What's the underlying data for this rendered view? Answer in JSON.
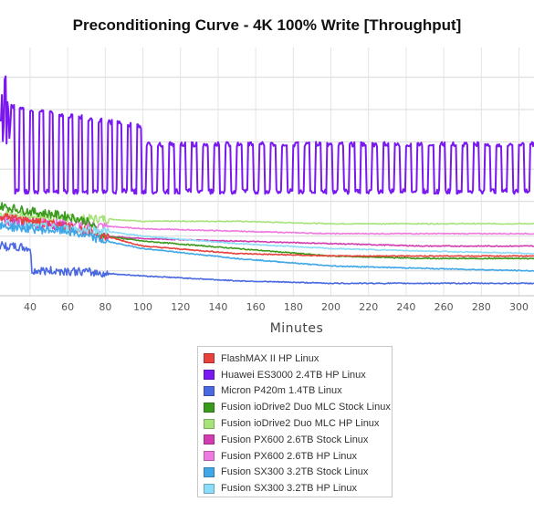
{
  "chart_data": {
    "type": "line",
    "title": "Preconditioning Curve - 4K 100% Write [Throughput]",
    "xlabel": "Minutes",
    "ylabel": "",
    "x_ticks": [
      40,
      60,
      80,
      100,
      120,
      140,
      160,
      180,
      200,
      220,
      240,
      260,
      280,
      300
    ],
    "xlim": [
      24,
      308
    ],
    "ylim": [
      0,
      1
    ],
    "y_scale_note": "relative",
    "grid": true,
    "legend_position": "bottom-center",
    "series": [
      {
        "name": "FlashMAX II HP Linux",
        "color": "#e8413c",
        "points": [
          [
            25,
            0.32
          ],
          [
            40,
            0.3
          ],
          [
            60,
            0.28
          ],
          [
            80,
            0.24
          ],
          [
            100,
            0.2
          ],
          [
            150,
            0.17
          ],
          [
            200,
            0.16
          ],
          [
            250,
            0.16
          ],
          [
            308,
            0.16
          ]
        ]
      },
      {
        "name": "Huawei ES3000 2.4TB HP Linux",
        "color": "#7a18f0",
        "points": [
          [
            25,
            0.7
          ],
          [
            28,
            0.95
          ],
          [
            30,
            0.62
          ],
          [
            45,
            0.58
          ],
          [
            60,
            0.56
          ],
          [
            80,
            0.54
          ],
          [
            120,
            0.5
          ],
          [
            160,
            0.5
          ],
          [
            200,
            0.5
          ],
          [
            240,
            0.5
          ],
          [
            280,
            0.5
          ],
          [
            308,
            0.5
          ]
        ]
      },
      {
        "name": "Micron P420m 1.4TB Linux",
        "color": "#4a68e0",
        "points": [
          [
            25,
            0.2
          ],
          [
            40,
            0.19
          ],
          [
            41,
            0.1
          ],
          [
            60,
            0.1
          ],
          [
            80,
            0.09
          ],
          [
            100,
            0.08
          ],
          [
            150,
            0.06
          ],
          [
            200,
            0.05
          ],
          [
            250,
            0.05
          ],
          [
            308,
            0.05
          ]
        ]
      },
      {
        "name": "Fusion ioDrive2 Duo MLC Stock Linux",
        "color": "#3a9a1c",
        "points": [
          [
            25,
            0.36
          ],
          [
            40,
            0.34
          ],
          [
            60,
            0.32
          ],
          [
            70,
            0.3
          ],
          [
            80,
            0.24
          ],
          [
            100,
            0.22
          ],
          [
            150,
            0.19
          ],
          [
            200,
            0.16
          ],
          [
            250,
            0.15
          ],
          [
            308,
            0.15
          ]
        ]
      },
      {
        "name": "Fusion ioDrive2 Duo MLC HP Linux",
        "color": "#a6e37a",
        "points": [
          [
            25,
            0.33
          ],
          [
            40,
            0.32
          ],
          [
            60,
            0.31
          ],
          [
            80,
            0.31
          ],
          [
            100,
            0.3
          ],
          [
            150,
            0.3
          ],
          [
            200,
            0.29
          ],
          [
            250,
            0.29
          ],
          [
            308,
            0.29
          ]
        ]
      },
      {
        "name": "Fusion PX600 2.6TB Stock Linux",
        "color": "#d23cb0",
        "points": [
          [
            25,
            0.3
          ],
          [
            40,
            0.29
          ],
          [
            60,
            0.28
          ],
          [
            80,
            0.24
          ],
          [
            100,
            0.23
          ],
          [
            150,
            0.22
          ],
          [
            200,
            0.21
          ],
          [
            250,
            0.2
          ],
          [
            308,
            0.2
          ]
        ]
      },
      {
        "name": "Fusion PX600 2.6TB HP Linux",
        "color": "#ee7ae0",
        "points": [
          [
            25,
            0.31
          ],
          [
            40,
            0.3
          ],
          [
            60,
            0.29
          ],
          [
            80,
            0.28
          ],
          [
            100,
            0.27
          ],
          [
            150,
            0.26
          ],
          [
            200,
            0.25
          ],
          [
            250,
            0.25
          ],
          [
            308,
            0.25
          ]
        ]
      },
      {
        "name": "Fusion SX300 3.2TB Stock Linux",
        "color": "#3fa7e8",
        "points": [
          [
            25,
            0.28
          ],
          [
            40,
            0.27
          ],
          [
            60,
            0.26
          ],
          [
            80,
            0.22
          ],
          [
            100,
            0.19
          ],
          [
            150,
            0.15
          ],
          [
            200,
            0.12
          ],
          [
            250,
            0.11
          ],
          [
            308,
            0.1
          ]
        ]
      },
      {
        "name": "Fusion SX300 3.2TB HP Linux",
        "color": "#8adcf8",
        "points": [
          [
            25,
            0.29
          ],
          [
            40,
            0.28
          ],
          [
            60,
            0.27
          ],
          [
            80,
            0.26
          ],
          [
            100,
            0.24
          ],
          [
            150,
            0.21
          ],
          [
            200,
            0.19
          ],
          [
            250,
            0.18
          ],
          [
            308,
            0.17
          ]
        ]
      }
    ]
  }
}
